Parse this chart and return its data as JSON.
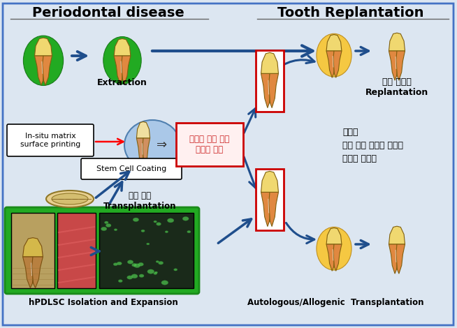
{
  "bg_color": "#dce6f1",
  "border_color": "#4472c4",
  "title_left": "Periodontal disease",
  "title_right": "Tooth Replantation",
  "label_extraction": "Extraction",
  "label_insitu": "In-situ matrix\nsurface printing",
  "label_stemcell": "Stem Cell Coating",
  "label_new_mechanism": "새로운 핵심 재생\n기전의 적용",
  "label_replantation": "치아 재이식\nReplantation",
  "label_new_right": "새로운\n핵심 재생 기전이 적용된\n치아의 재이식",
  "label_transplantation": "치아 이식\nTransplantation",
  "label_hpdlsc": "hPDLSC Isolation and Expansion",
  "label_autologous": "Autologous/Allogenic  Transplantation",
  "green_color": "#22aa22",
  "blue_arrow_color": "#1f4e8c",
  "orange_color": "#f5c842",
  "red_color": "#cc0000",
  "light_blue_ellipse": "#aac8e8",
  "tooth_crown": "#f0d870",
  "tooth_root": "#e08840",
  "tooth_root2": "#c07030"
}
